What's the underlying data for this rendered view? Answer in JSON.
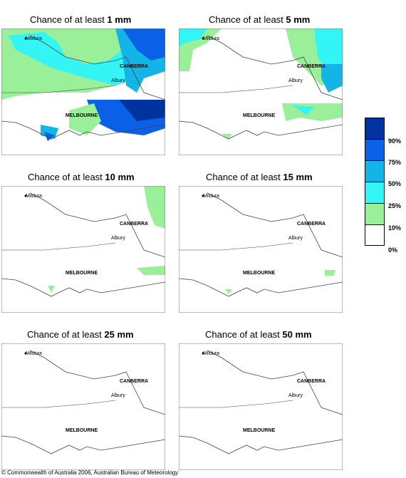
{
  "panels": [
    {
      "prefix": "Chance of at least ",
      "amount": "1 mm",
      "level": "1mm"
    },
    {
      "prefix": "Chance of at least ",
      "amount": "5 mm",
      "level": "5mm"
    },
    {
      "prefix": "Chance of at least ",
      "amount": "10 mm",
      "level": "10mm"
    },
    {
      "prefix": "Chance of at least ",
      "amount": "15 mm",
      "level": "15mm"
    },
    {
      "prefix": "Chance of at least ",
      "amount": "25 mm",
      "level": "25mm"
    },
    {
      "prefix": "Chance of at least ",
      "amount": "50 mm",
      "level": "50mm"
    }
  ],
  "places": {
    "mildura": "Mildura",
    "canberra": "CANBERRA",
    "albury": "Albury",
    "melbourne": "MELBOURNE"
  },
  "legend": {
    "labels": [
      "90%",
      "75%",
      "50%",
      "25%",
      "10%",
      "0%"
    ],
    "colors": [
      "#0033a0",
      "#0a60e6",
      "#13b4e6",
      "#33f5f5",
      "#99f099",
      "#ffffff"
    ]
  },
  "footer": "© Commonwealth of Australia 2006, Australian Bureau of Meteorology"
}
